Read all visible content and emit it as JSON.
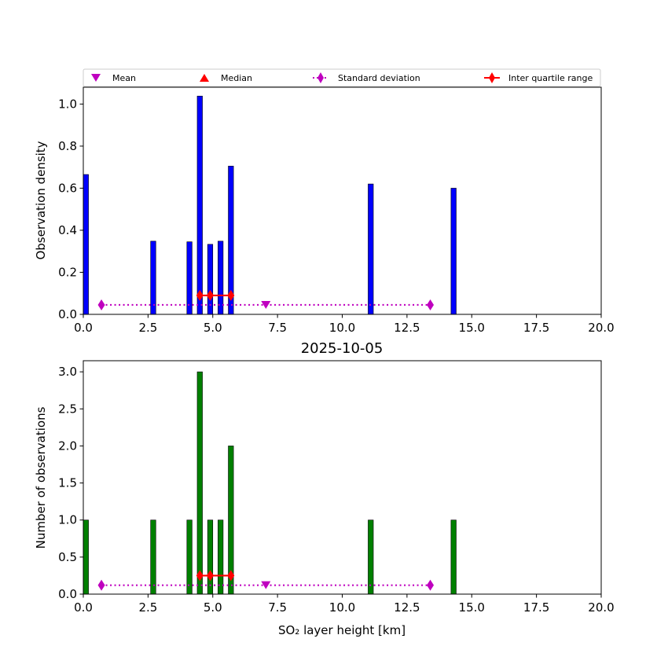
{
  "legend": {
    "mean": "Mean",
    "median": "Median",
    "std": "Standard deviation",
    "iqr": "Inter quartile range"
  },
  "colors": {
    "density_bar": "#0000ff",
    "count_bar": "#008000",
    "stats": "#bf00bf",
    "iqr": "#ff0000"
  },
  "chart_data": [
    {
      "type": "bar",
      "panel": "top",
      "title": "",
      "xlabel": "",
      "ylabel": "Observation density",
      "xlim": [
        0,
        20
      ],
      "ylim": [
        0,
        1.08
      ],
      "xticks": [
        "0.0",
        "2.5",
        "5.0",
        "7.5",
        "10.0",
        "12.5",
        "15.0",
        "17.5",
        "20.0"
      ],
      "yticks": [
        "0.0",
        "0.2",
        "0.4",
        "0.6",
        "0.8",
        "1.0"
      ],
      "x": [
        0.1,
        2.7,
        4.1,
        4.5,
        4.9,
        5.3,
        5.7,
        11.1,
        14.3
      ],
      "values": [
        0.665,
        0.348,
        0.345,
        1.038,
        0.333,
        0.348,
        0.705,
        0.62,
        0.6
      ],
      "stats": {
        "mean": 7.05,
        "median": 4.9,
        "std_range": [
          0.7,
          13.4
        ],
        "iqr_range": [
          4.5,
          5.7
        ],
        "std_y": 0.045,
        "iqr_y": 0.09
      }
    },
    {
      "type": "bar",
      "panel": "bottom",
      "title": "2025-10-05",
      "xlabel": "SO₂ layer height [km]",
      "ylabel": "Number of observations",
      "xlim": [
        0,
        20
      ],
      "ylim": [
        0,
        3.15
      ],
      "xticks": [
        "0.0",
        "2.5",
        "5.0",
        "7.5",
        "10.0",
        "12.5",
        "15.0",
        "17.5",
        "20.0"
      ],
      "yticks": [
        "0.0",
        "0.5",
        "1.0",
        "1.5",
        "2.0",
        "2.5",
        "3.0"
      ],
      "x": [
        0.1,
        2.7,
        4.1,
        4.5,
        4.9,
        5.3,
        5.7,
        11.1,
        14.3
      ],
      "values": [
        1,
        1,
        1,
        3,
        1,
        1,
        2,
        1,
        1
      ],
      "stats": {
        "mean": 7.05,
        "median": 4.9,
        "std_range": [
          0.7,
          13.4
        ],
        "iqr_range": [
          4.5,
          5.7
        ],
        "std_y": 0.12,
        "iqr_y": 0.25
      }
    }
  ]
}
